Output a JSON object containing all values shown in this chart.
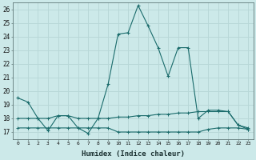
{
  "xlabel": "Humidex (Indice chaleur)",
  "ylabel": "",
  "background_color": "#cce9e9",
  "grid_color": "#b8d8d8",
  "line_color": "#1a6b6b",
  "xlim": [
    -0.5,
    23.5
  ],
  "ylim": [
    16.5,
    26.5
  ],
  "yticks": [
    17,
    18,
    19,
    20,
    21,
    22,
    23,
    24,
    25,
    26
  ],
  "xticks": [
    0,
    1,
    2,
    3,
    4,
    5,
    6,
    7,
    8,
    9,
    10,
    11,
    12,
    13,
    14,
    15,
    16,
    17,
    18,
    19,
    20,
    21,
    22,
    23
  ],
  "series1_x": [
    0,
    1,
    2,
    3,
    4,
    5,
    6,
    7,
    8,
    9,
    10,
    11,
    12,
    13,
    14,
    15,
    16,
    17,
    18,
    19,
    20,
    21,
    22,
    23
  ],
  "series1_y": [
    19.5,
    19.2,
    18.0,
    17.1,
    18.2,
    18.2,
    17.3,
    16.9,
    18.0,
    20.5,
    24.2,
    24.3,
    26.3,
    24.8,
    23.2,
    21.1,
    23.2,
    23.2,
    18.0,
    18.6,
    18.6,
    18.5,
    17.5,
    17.3
  ],
  "series2_x": [
    0,
    1,
    2,
    3,
    4,
    5,
    6,
    7,
    8,
    9,
    10,
    11,
    12,
    13,
    14,
    15,
    16,
    17,
    18,
    19,
    20,
    21,
    22,
    23
  ],
  "series2_y": [
    18.0,
    18.0,
    18.0,
    18.0,
    18.2,
    18.2,
    18.0,
    18.0,
    18.0,
    18.0,
    18.1,
    18.1,
    18.2,
    18.2,
    18.3,
    18.3,
    18.4,
    18.4,
    18.5,
    18.5,
    18.5,
    18.5,
    17.5,
    17.2
  ],
  "series3_x": [
    0,
    1,
    2,
    3,
    4,
    5,
    6,
    7,
    8,
    9,
    10,
    11,
    12,
    13,
    14,
    15,
    16,
    17,
    18,
    19,
    20,
    21,
    22,
    23
  ],
  "series3_y": [
    17.3,
    17.3,
    17.3,
    17.3,
    17.3,
    17.3,
    17.3,
    17.3,
    17.3,
    17.3,
    17.0,
    17.0,
    17.0,
    17.0,
    17.0,
    17.0,
    17.0,
    17.0,
    17.0,
    17.2,
    17.3,
    17.3,
    17.3,
    17.2
  ]
}
